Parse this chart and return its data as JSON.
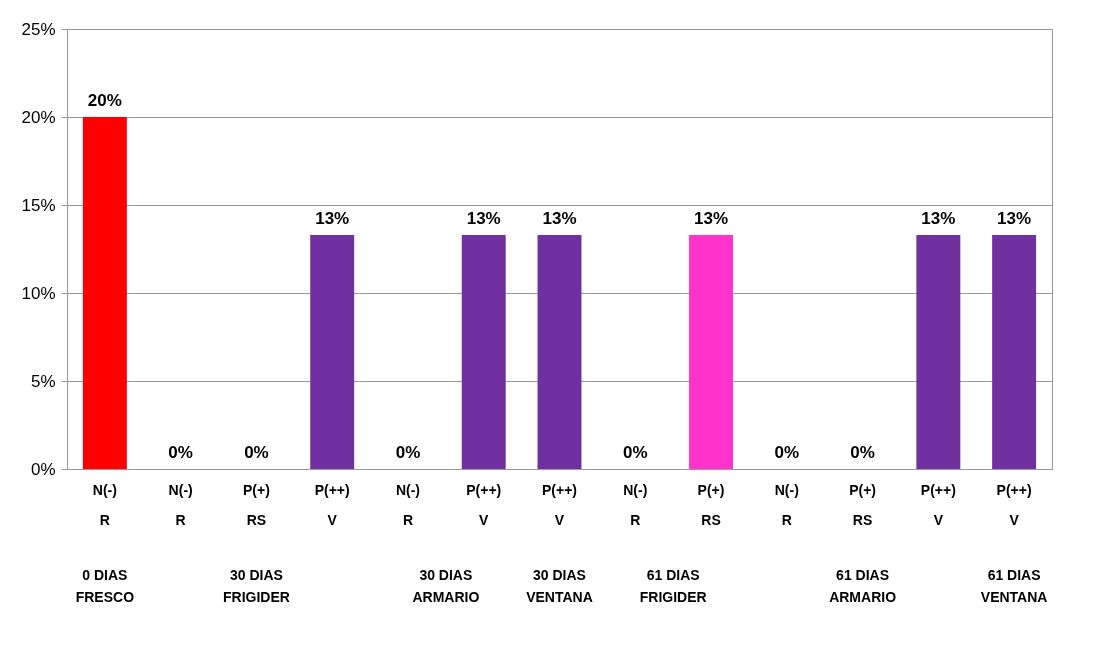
{
  "chart_data": {
    "type": "bar",
    "categories": [
      "N(-)\nR",
      "N(-)\nR",
      "P(+)\nRS",
      "P(++)\nV",
      "N(-)\nR",
      "P(++)\nV",
      "P(++)\nV",
      "N(-)\nR",
      "P(+)\nRS",
      "N(-)\nR",
      "P(+)\nRS",
      "P(++)\nV",
      "P(++)\nV"
    ],
    "values": [
      20,
      0,
      0,
      13.3,
      0,
      13.3,
      13.3,
      0,
      13.3,
      0,
      0,
      13.3,
      13.3
    ],
    "value_labels": [
      "20%",
      "0%",
      "0%",
      "13%",
      "0%",
      "13%",
      "13%",
      "0%",
      "13%",
      "0%",
      "0%",
      "13%",
      "13%"
    ],
    "colors": [
      "#ff0000",
      "#ff0000",
      "#ff33cc",
      "#7030a0",
      "#ff0000",
      "#7030a0",
      "#7030a0",
      "#ff0000",
      "#ff33cc",
      "#ff0000",
      "#ff33cc",
      "#7030a0",
      "#7030a0"
    ],
    "ylim": [
      0,
      25
    ],
    "yticks": [
      {
        "value": 0,
        "label": "0%"
      },
      {
        "value": 5,
        "label": "5%"
      },
      {
        "value": 10,
        "label": "10%"
      },
      {
        "value": 15,
        "label": "15%"
      },
      {
        "value": 20,
        "label": "20%"
      },
      {
        "value": 25,
        "label": "25%"
      }
    ],
    "annotations": [
      "0 DIAS\nFRESCO",
      "30 DIAS\nFRIGIDER",
      "30 DIAS\nARMARIO",
      "30 DIAS\nVENTANA",
      "61 DIAS\nFRIGIDER",
      "61 DIAS\nARMARIO",
      "61 DIAS\nVENTANA"
    ],
    "grid": "y"
  }
}
